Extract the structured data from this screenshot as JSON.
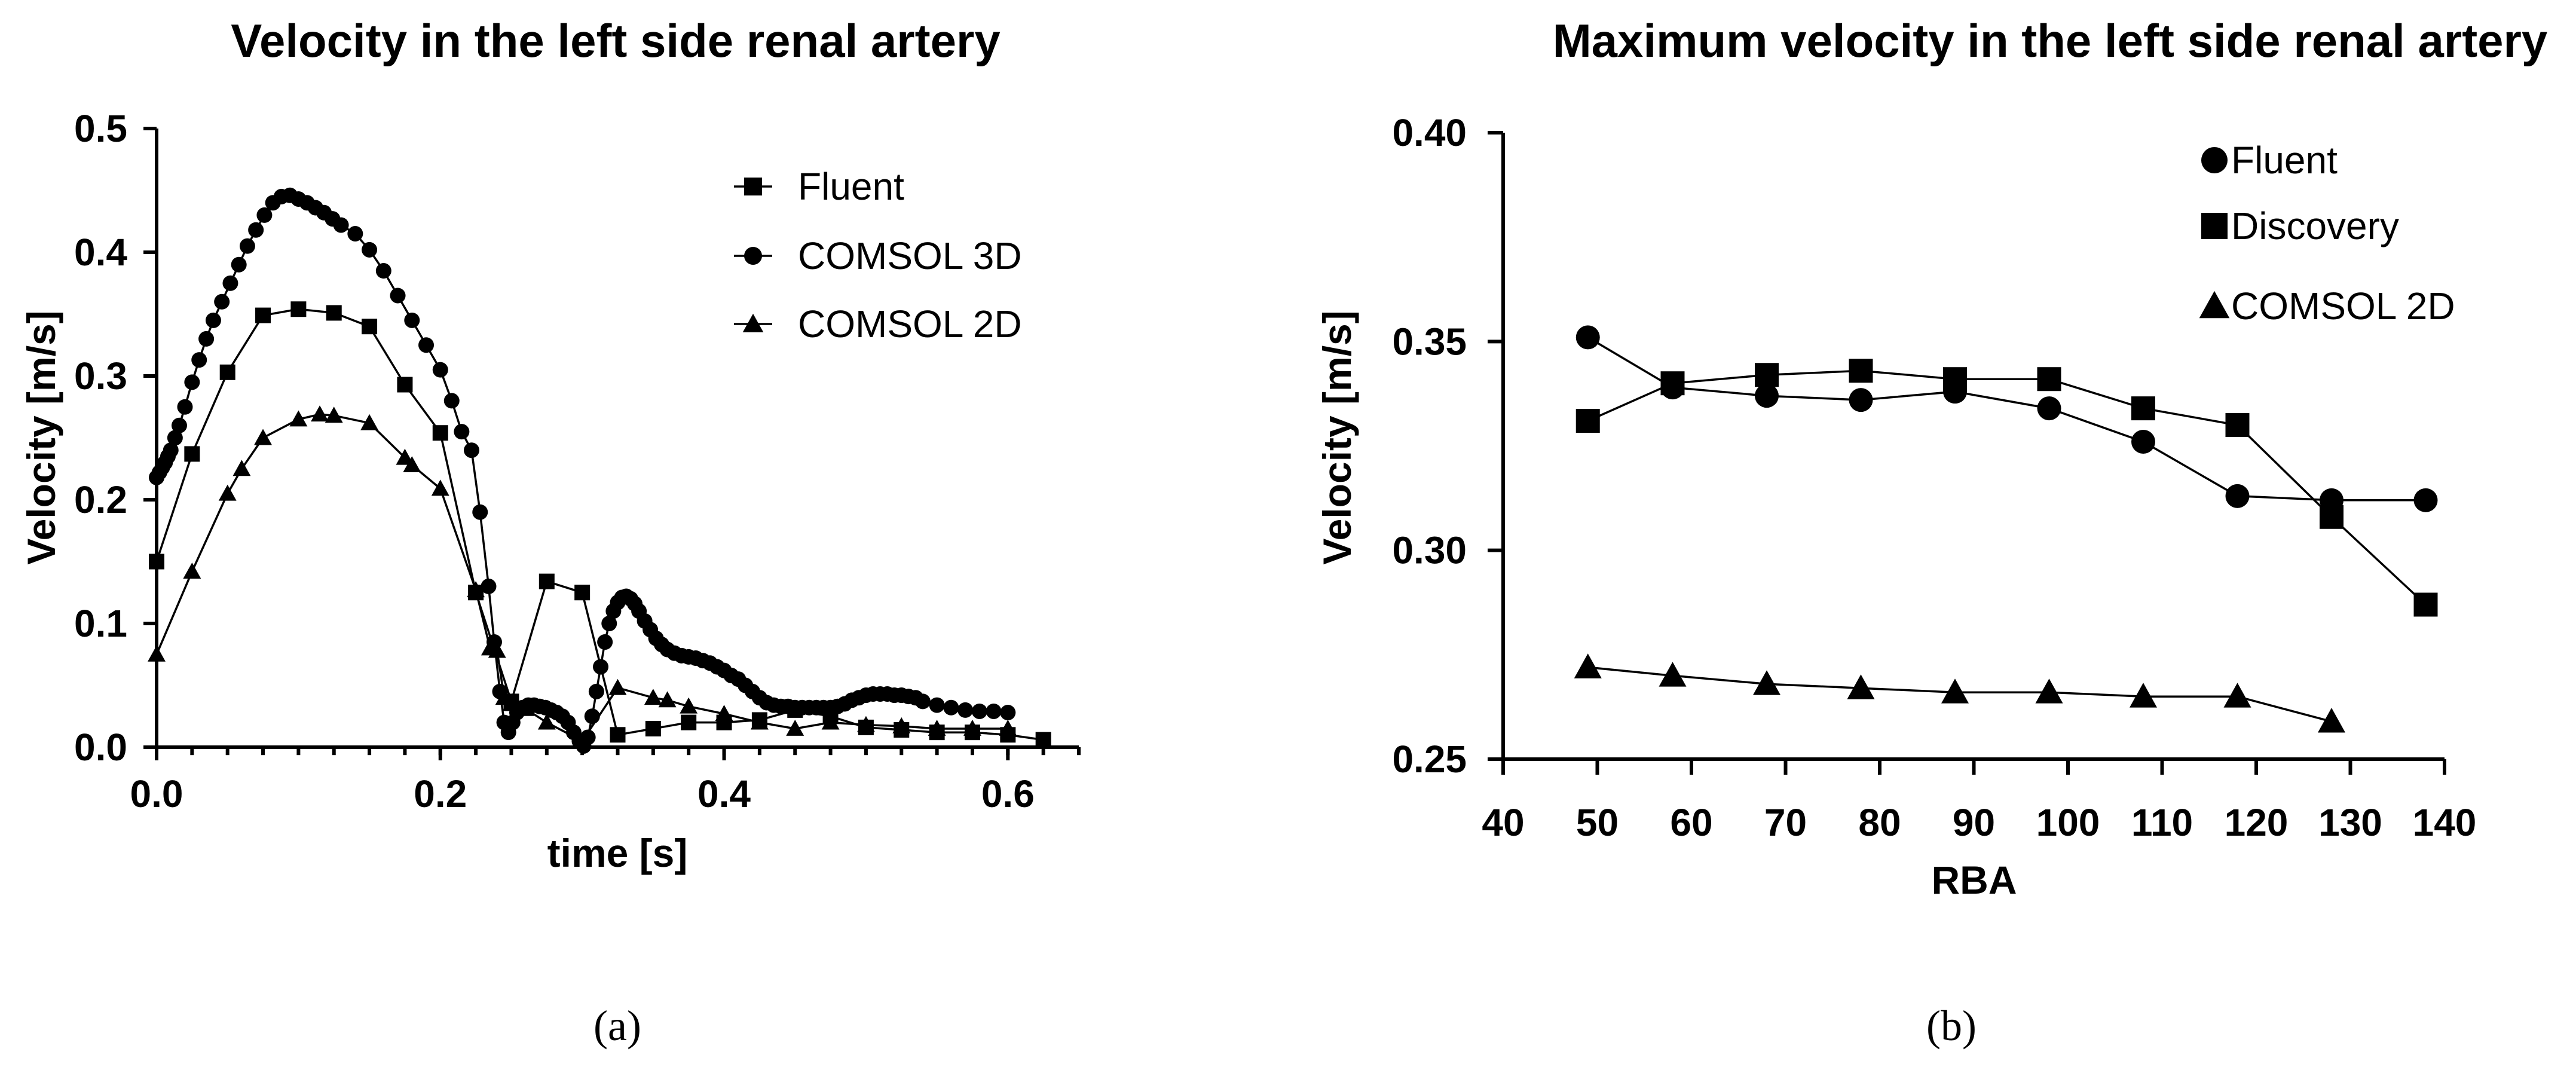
{
  "chart_data": [
    {
      "type": "line",
      "panel": "a",
      "title": "Velocity in the left side renal artery",
      "xlabel": "time [s]",
      "ylabel": "Velocity [m/s]",
      "xlim": [
        0,
        0.65
      ],
      "ylim": [
        0,
        0.5
      ],
      "xticks": [
        0.0,
        0.2,
        0.4,
        0.6
      ],
      "xtick_labels": [
        "0.0",
        "0.2",
        "0.4",
        "0.6"
      ],
      "yticks": [
        0.0,
        0.1,
        0.2,
        0.3,
        0.4,
        0.5
      ],
      "ytick_labels": [
        "0.0",
        "0.1",
        "0.2",
        "0.3",
        "0.4",
        "0.5"
      ],
      "legend_position": "top-right",
      "caption": "(a)",
      "series": [
        {
          "name": "Fluent",
          "marker": "square",
          "x": [
            0.0,
            0.025,
            0.05,
            0.075,
            0.1,
            0.125,
            0.15,
            0.175,
            0.2,
            0.225,
            0.25,
            0.275,
            0.3,
            0.325,
            0.35,
            0.375,
            0.4,
            0.425,
            0.45,
            0.475,
            0.5,
            0.525,
            0.55,
            0.575,
            0.6,
            0.625
          ],
          "y": [
            0.15,
            0.237,
            0.303,
            0.349,
            0.354,
            0.351,
            0.34,
            0.293,
            0.254,
            0.125,
            0.037,
            0.134,
            0.125,
            0.01,
            0.015,
            0.02,
            0.02,
            0.022,
            0.03,
            0.025,
            0.016,
            0.014,
            0.012,
            0.012,
            0.01,
            0.006
          ]
        },
        {
          "name": "COMSOL 3D",
          "marker": "circle",
          "x": [
            0.0,
            0.002,
            0.004,
            0.006,
            0.008,
            0.01,
            0.013,
            0.016,
            0.02,
            0.025,
            0.03,
            0.035,
            0.04,
            0.046,
            0.052,
            0.058,
            0.064,
            0.07,
            0.076,
            0.082,
            0.088,
            0.094,
            0.1,
            0.106,
            0.112,
            0.118,
            0.124,
            0.13,
            0.14,
            0.15,
            0.16,
            0.17,
            0.18,
            0.19,
            0.2,
            0.208,
            0.215,
            0.222,
            0.228,
            0.234,
            0.238,
            0.242,
            0.245,
            0.248,
            0.251,
            0.254,
            0.258,
            0.262,
            0.266,
            0.27,
            0.274,
            0.278,
            0.282,
            0.286,
            0.29,
            0.294,
            0.298,
            0.301,
            0.304,
            0.307,
            0.31,
            0.313,
            0.316,
            0.319,
            0.322,
            0.325,
            0.328,
            0.331,
            0.334,
            0.337,
            0.34,
            0.344,
            0.348,
            0.352,
            0.356,
            0.36,
            0.365,
            0.37,
            0.375,
            0.38,
            0.385,
            0.39,
            0.395,
            0.4,
            0.405,
            0.41,
            0.415,
            0.42,
            0.425,
            0.43,
            0.435,
            0.44,
            0.445,
            0.45,
            0.455,
            0.46,
            0.465,
            0.47,
            0.475,
            0.48,
            0.485,
            0.49,
            0.495,
            0.5,
            0.505,
            0.51,
            0.515,
            0.52,
            0.525,
            0.53,
            0.535,
            0.54,
            0.55,
            0.56,
            0.57,
            0.58,
            0.59,
            0.6
          ],
          "y": [
            0.218,
            0.222,
            0.226,
            0.23,
            0.235,
            0.24,
            0.25,
            0.26,
            0.275,
            0.295,
            0.313,
            0.33,
            0.345,
            0.36,
            0.375,
            0.39,
            0.405,
            0.418,
            0.43,
            0.44,
            0.445,
            0.446,
            0.443,
            0.44,
            0.436,
            0.432,
            0.427,
            0.422,
            0.415,
            0.402,
            0.385,
            0.365,
            0.345,
            0.325,
            0.305,
            0.28,
            0.255,
            0.24,
            0.19,
            0.13,
            0.085,
            0.045,
            0.02,
            0.012,
            0.02,
            0.028,
            0.032,
            0.034,
            0.034,
            0.033,
            0.032,
            0.03,
            0.028,
            0.025,
            0.02,
            0.012,
            0.005,
            0.001,
            0.008,
            0.025,
            0.045,
            0.065,
            0.085,
            0.1,
            0.11,
            0.117,
            0.121,
            0.122,
            0.12,
            0.116,
            0.11,
            0.102,
            0.095,
            0.088,
            0.083,
            0.079,
            0.076,
            0.074,
            0.073,
            0.072,
            0.07,
            0.068,
            0.065,
            0.062,
            0.058,
            0.055,
            0.05,
            0.045,
            0.04,
            0.036,
            0.034,
            0.033,
            0.033,
            0.032,
            0.032,
            0.032,
            0.032,
            0.032,
            0.032,
            0.033,
            0.035,
            0.038,
            0.04,
            0.042,
            0.043,
            0.043,
            0.043,
            0.042,
            0.042,
            0.041,
            0.04,
            0.037,
            0.034,
            0.032,
            0.03,
            0.029,
            0.029,
            0.028
          ]
        },
        {
          "name": "COMSOL 2D",
          "marker": "triangle",
          "x": [
            0.0,
            0.025,
            0.05,
            0.06,
            0.075,
            0.1,
            0.115,
            0.125,
            0.15,
            0.175,
            0.18,
            0.2,
            0.225,
            0.235,
            0.24,
            0.245,
            0.25,
            0.26,
            0.275,
            0.3,
            0.325,
            0.35,
            0.36,
            0.375,
            0.4,
            0.425,
            0.45,
            0.475,
            0.5,
            0.525,
            0.55,
            0.575,
            0.6
          ],
          "y": [
            0.075,
            0.142,
            0.205,
            0.225,
            0.25,
            0.265,
            0.269,
            0.268,
            0.262,
            0.234,
            0.228,
            0.209,
            0.127,
            0.08,
            0.078,
            0.04,
            0.035,
            0.031,
            0.02,
            0.005,
            0.048,
            0.04,
            0.038,
            0.033,
            0.027,
            0.02,
            0.015,
            0.02,
            0.018,
            0.017,
            0.015,
            0.015,
            0.015
          ]
        }
      ]
    },
    {
      "type": "line",
      "panel": "b",
      "title": "Maximum velocity in the left side renal artery",
      "xlabel": "RBA",
      "ylabel": "Velocity [m/s]",
      "xlim": [
        40,
        140
      ],
      "ylim": [
        0.25,
        0.4
      ],
      "xticks": [
        40,
        50,
        60,
        70,
        80,
        90,
        100,
        110,
        120,
        130,
        140
      ],
      "xtick_labels": [
        "40",
        "50",
        "60",
        "70",
        "80",
        "90",
        "100",
        "110",
        "120",
        "130",
        "140"
      ],
      "yticks": [
        0.25,
        0.3,
        0.35,
        0.4
      ],
      "ytick_labels": [
        "0.25",
        "0.30",
        "0.35",
        "0.40"
      ],
      "legend_position": "top-right",
      "caption": "(b)",
      "series": [
        {
          "name": "Fluent",
          "marker": "circle",
          "x": [
            49,
            58,
            68,
            78,
            88,
            98,
            108,
            118,
            128,
            138
          ],
          "y": [
            0.351,
            0.339,
            0.337,
            0.336,
            0.338,
            0.334,
            0.326,
            0.313,
            0.312,
            0.312
          ]
        },
        {
          "name": "Discovery",
          "marker": "square",
          "x": [
            49,
            58,
            68,
            78,
            88,
            98,
            108,
            118,
            128,
            138
          ],
          "y": [
            0.331,
            0.34,
            0.342,
            0.343,
            0.341,
            0.341,
            0.334,
            0.33,
            0.308,
            0.287
          ]
        },
        {
          "name": "COMSOL 2D",
          "marker": "triangle",
          "x": [
            49,
            58,
            68,
            78,
            88,
            98,
            108,
            118,
            128
          ],
          "y": [
            0.272,
            0.27,
            0.268,
            0.267,
            0.266,
            0.266,
            0.265,
            0.265,
            0.259
          ]
        }
      ]
    }
  ]
}
